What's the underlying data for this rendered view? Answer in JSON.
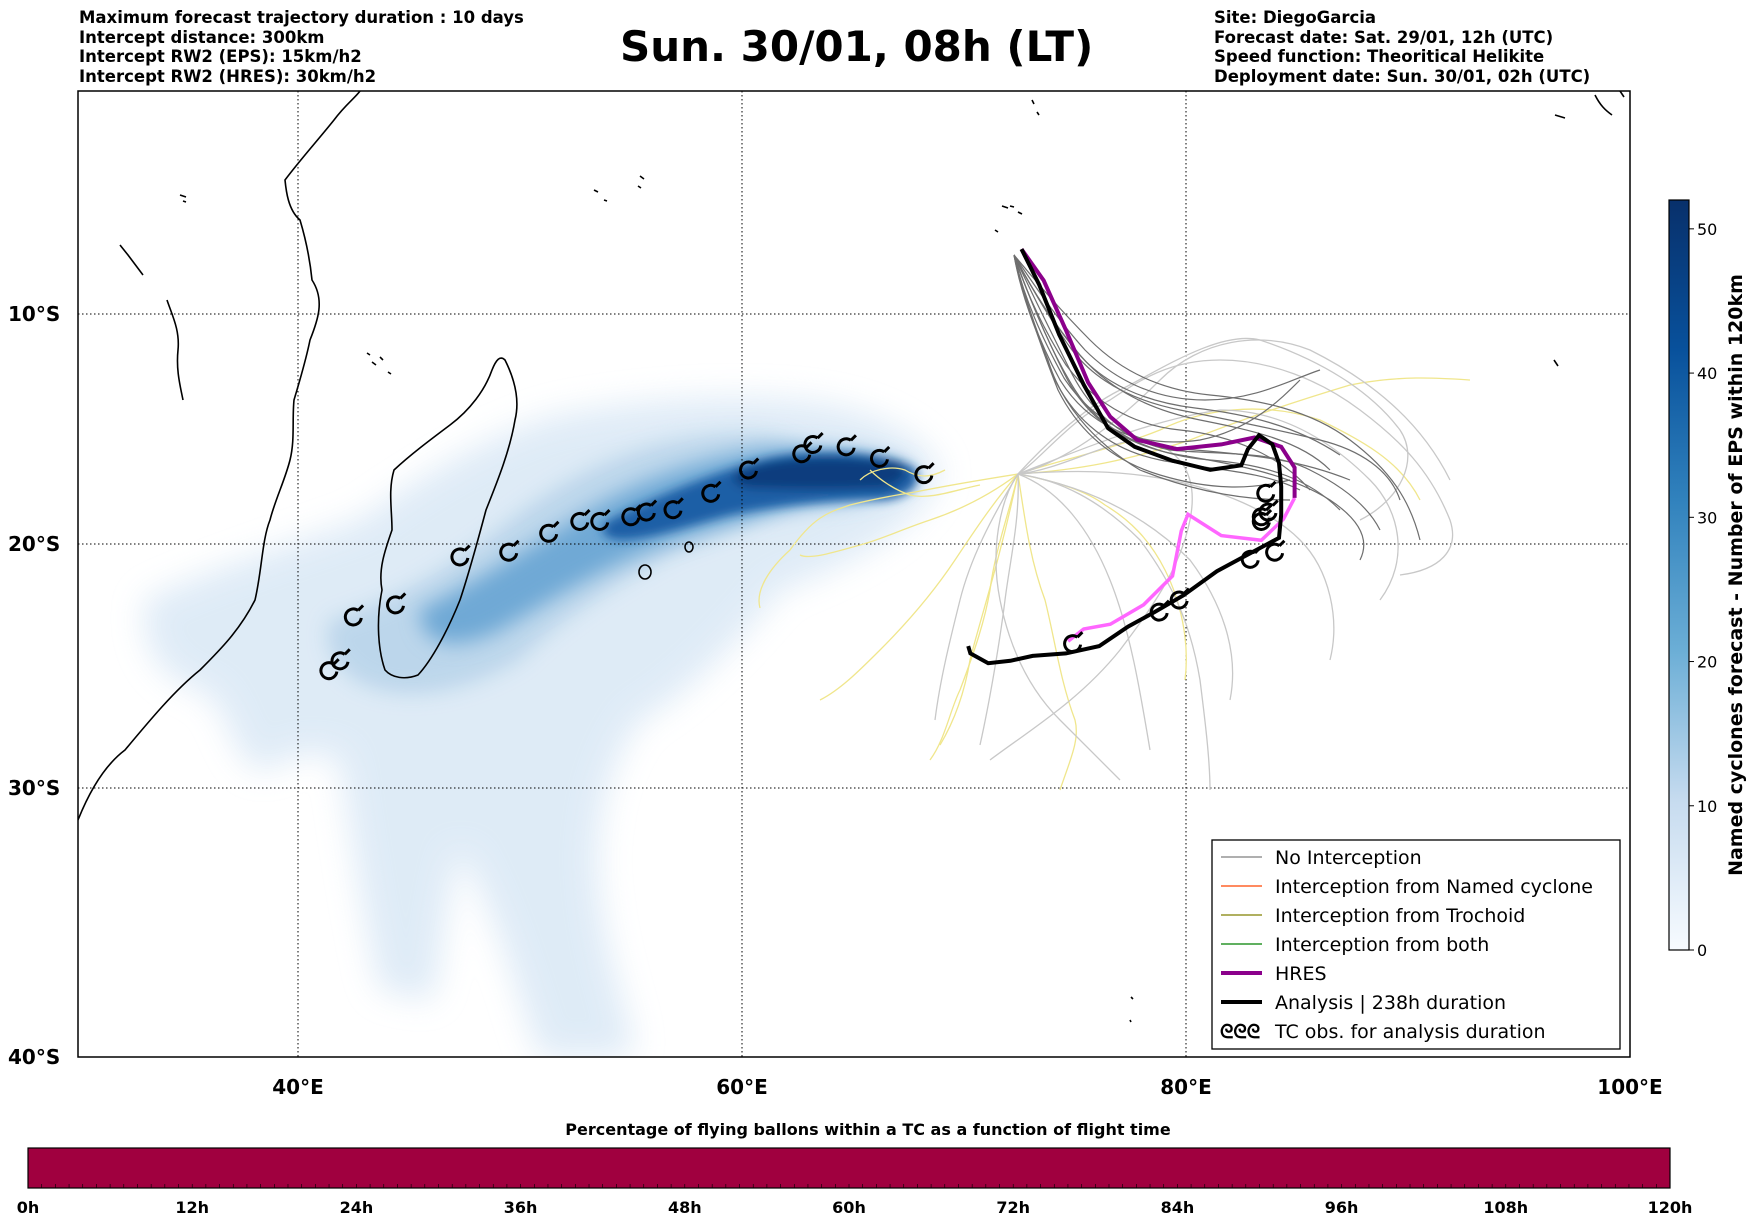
{
  "header": {
    "left": [
      "Maximum forecast trajectory duration : 10 days",
      "Intercept distance: 300km",
      "Intercept RW2 (EPS):  15km/h2",
      "Intercept RW2 (HRES): 30km/h2"
    ],
    "title": "Sun. 30/01, 08h (LT)",
    "right": [
      "Site: DiegoGarcia",
      "Forecast date: Sat. 29/01, 12h (UTC)",
      "Speed function: Theoritical Helikite",
      "Deployment date: Sun. 30/01, 02h (UTC)"
    ]
  },
  "map": {
    "lat_labels": [
      "10°S",
      "20°S",
      "30°S",
      "40°S"
    ],
    "lon_labels": [
      "40°E",
      "60°E",
      "80°E",
      "100°E"
    ],
    "extent": {
      "lon_min": 30,
      "lon_max": 100,
      "lat_min": -40,
      "lat_max": -0.5
    }
  },
  "legend": {
    "no_interception": "No Interception",
    "named_cyclone": "Interception from Named cyclone",
    "trochoid": "Interception from Trochoid",
    "both": "Interception from both",
    "hres": "HRES",
    "analysis": "Analysis | 238h duration",
    "tc_obs": "TC obs. for analysis duration",
    "tc_glyph": "ᘓᘓᘓ"
  },
  "colors": {
    "no_interception": "#7f7f7f",
    "named_cyclone": "#ff4500",
    "trochoid": "#808000",
    "both": "#008000",
    "hres": "#8b008b",
    "analysis": "#000000",
    "hres_light": "#ff66ff",
    "members_light": "#c8c8c8",
    "yellow": "#f0e68c",
    "density_dark": "#08306b",
    "bottom_bar": "#a0003f"
  },
  "colorbar_right": {
    "label": "Named cyclones forecast - Number of EPS within 120km",
    "ticks": [
      "0",
      "10",
      "20",
      "30",
      "40",
      "50"
    ],
    "vmin": 0,
    "vmax": 52
  },
  "colorbar_bottom": {
    "title": "Percentage of flying ballons within a TC as a function of flight time",
    "ticks": [
      "0h",
      "12h",
      "24h",
      "36h",
      "48h",
      "60h",
      "72h",
      "84h",
      "96h",
      "108h",
      "120h"
    ]
  },
  "tc_track": [
    [
      41.3,
      -25.7
    ],
    [
      41.8,
      -25.3
    ],
    [
      42.4,
      -23.5
    ],
    [
      44.3,
      -23.0
    ],
    [
      47.2,
      -21.0
    ],
    [
      49.4,
      -20.8
    ],
    [
      51.2,
      -20.0
    ],
    [
      52.6,
      -19.5
    ],
    [
      53.5,
      -19.5
    ],
    [
      54.9,
      -19.3
    ],
    [
      55.6,
      -19.1
    ],
    [
      56.8,
      -19.0
    ],
    [
      58.5,
      -18.3
    ],
    [
      60.2,
      -17.3
    ],
    [
      62.6,
      -16.6
    ],
    [
      63.1,
      -16.2
    ],
    [
      64.6,
      -16.3
    ],
    [
      66.1,
      -16.8
    ],
    [
      68.1,
      -17.5
    ]
  ],
  "analysis_tc": [
    [
      74.8,
      -24.6
    ],
    [
      78.7,
      -23.3
    ],
    [
      79.6,
      -22.8
    ],
    [
      82.8,
      -21.1
    ],
    [
      83.9,
      -20.8
    ],
    [
      83.3,
      -19.3
    ],
    [
      83.6,
      -19.1
    ],
    [
      83.5,
      -18.3
    ],
    [
      83.3,
      -19.5
    ]
  ],
  "hres_track": [
    [
      72.5,
      -7.6
    ],
    [
      73.5,
      -9.0
    ],
    [
      74.5,
      -11.2
    ],
    [
      75.5,
      -13.5
    ],
    [
      76.5,
      -15.0
    ],
    [
      77.7,
      -16.0
    ],
    [
      79.5,
      -16.4
    ],
    [
      81.5,
      -16.2
    ],
    [
      83.0,
      -15.9
    ],
    [
      84.2,
      -16.3
    ],
    [
      84.8,
      -17.2
    ],
    [
      84.8,
      -18.5
    ]
  ],
  "hres_light_track": [
    [
      84.8,
      -18.5
    ],
    [
      84.3,
      -19.4
    ],
    [
      83.3,
      -20.3
    ],
    [
      81.5,
      -20.1
    ],
    [
      80.0,
      -19.2
    ],
    [
      79.7,
      -19.9
    ],
    [
      79.3,
      -21.8
    ],
    [
      78.0,
      -23.0
    ],
    [
      76.5,
      -23.8
    ],
    [
      75.3,
      -24.0
    ],
    [
      74.6,
      -24.5
    ]
  ],
  "analysis_track": [
    [
      72.5,
      -7.6
    ],
    [
      73.3,
      -9.2
    ],
    [
      74.2,
      -11.4
    ],
    [
      75.3,
      -13.6
    ],
    [
      76.4,
      -15.5
    ],
    [
      77.6,
      -16.3
    ],
    [
      79.3,
      -16.9
    ],
    [
      81.0,
      -17.3
    ],
    [
      82.4,
      -17.1
    ],
    [
      82.7,
      -16.4
    ],
    [
      83.2,
      -15.8
    ],
    [
      83.8,
      -16.2
    ],
    [
      84.1,
      -17.0
    ],
    [
      84.2,
      -18.0
    ],
    [
      84.2,
      -19.2
    ],
    [
      84.1,
      -20.2
    ],
    [
      83.5,
      -20.5
    ],
    [
      82.5,
      -21.0
    ],
    [
      81.3,
      -21.6
    ],
    [
      79.8,
      -22.6
    ],
    [
      78.5,
      -23.3
    ],
    [
      77.3,
      -23.9
    ],
    [
      76.0,
      -24.7
    ],
    [
      74.5,
      -25.0
    ],
    [
      73.0,
      -25.1
    ],
    [
      72.0,
      -25.3
    ],
    [
      71.0,
      -25.4
    ],
    [
      70.2,
      -25.0
    ],
    [
      70.1,
      -24.7
    ]
  ]
}
